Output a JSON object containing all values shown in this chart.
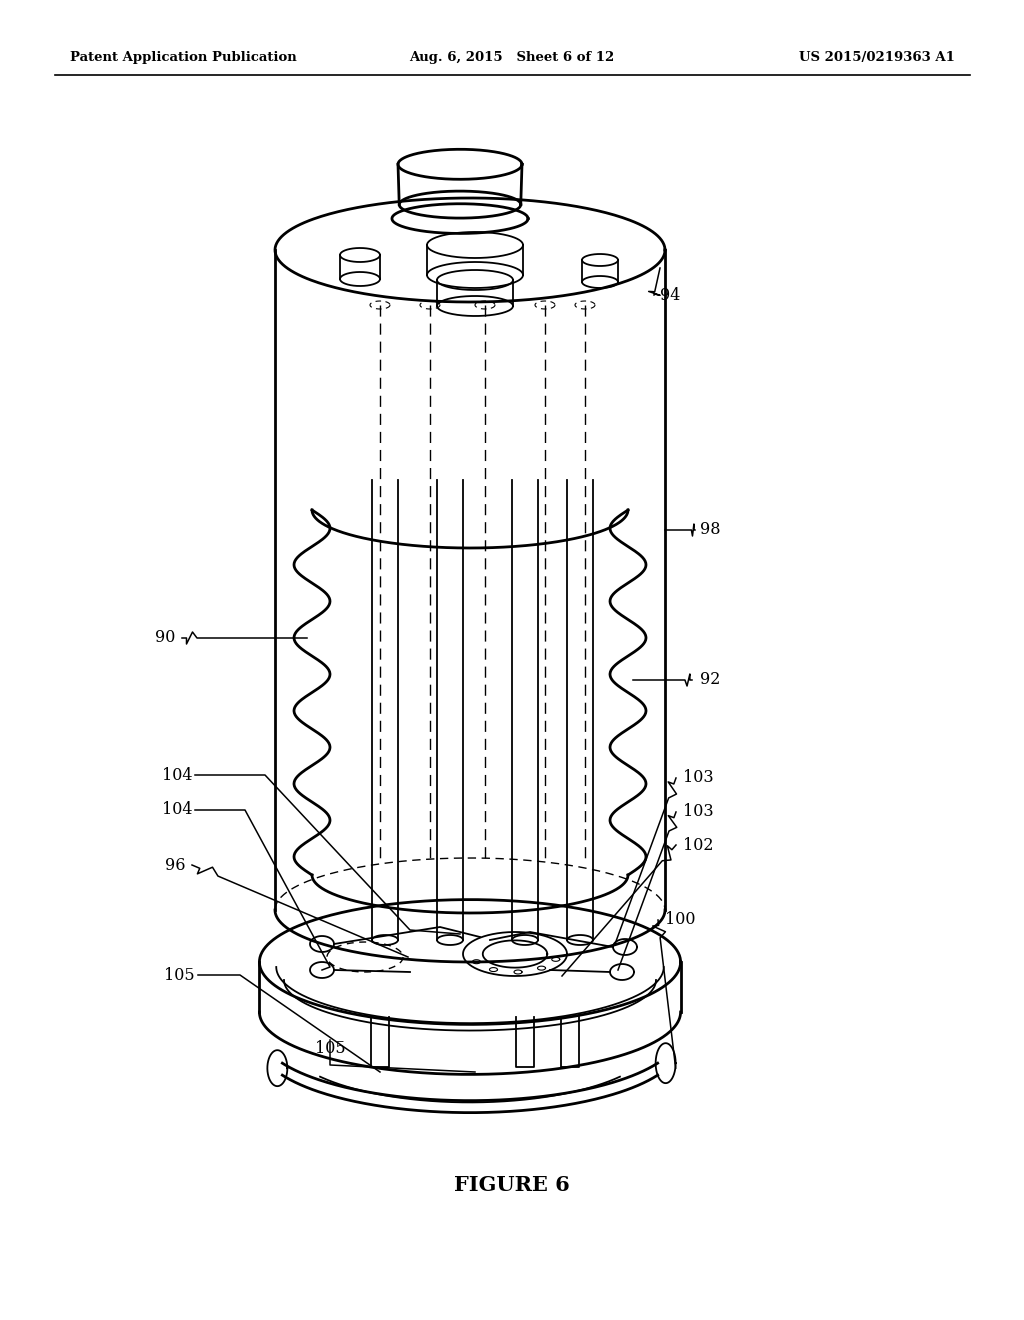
{
  "background_color": "#ffffff",
  "header_left": "Patent Application Publication",
  "header_center": "Aug. 6, 2015   Sheet 6 of 12",
  "header_right": "US 2015/0219363 A1",
  "figure_label": "FIGURE 6"
}
